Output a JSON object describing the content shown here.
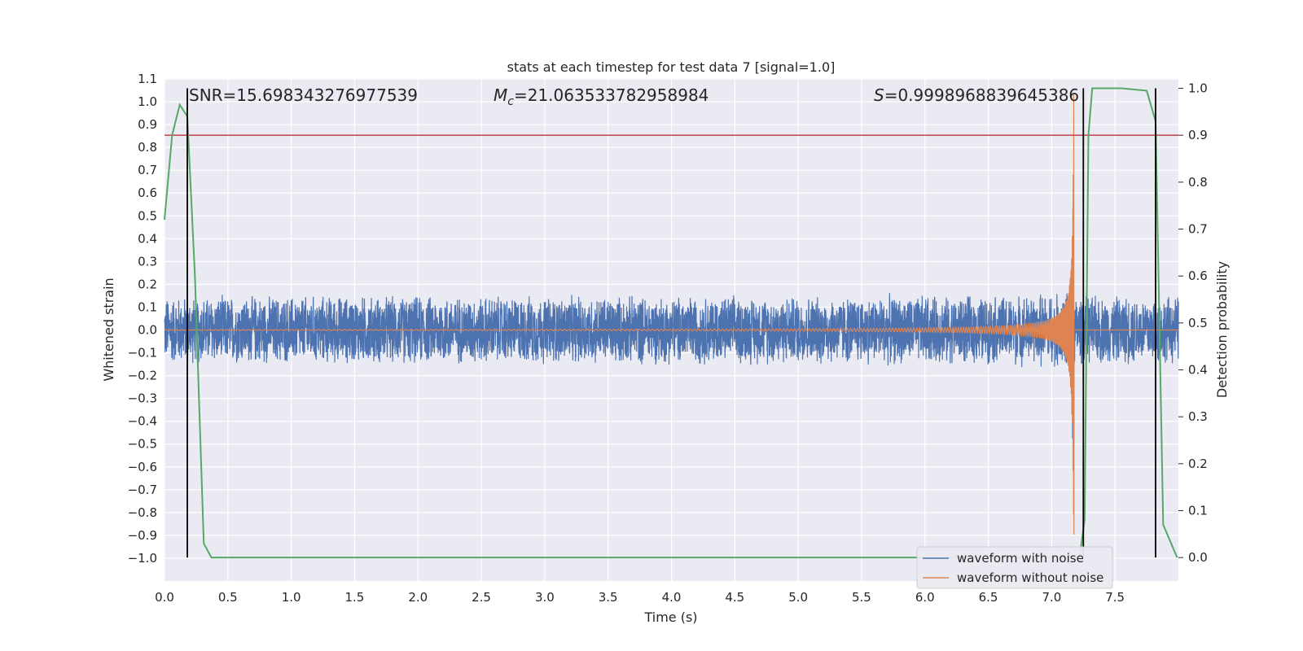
{
  "chart_data": {
    "type": "line",
    "title": "stats at each timestep for test data 7 [signal=1.0]",
    "xlabel": "Time (s)",
    "ylabel": "Whitened strain",
    "y2label": "Detection probability",
    "xlim": [
      0.0,
      8.0
    ],
    "ylim": [
      -1.1,
      1.1
    ],
    "y2lim": [
      -0.05,
      1.02
    ],
    "x_ticks": [
      "0.0",
      "0.5",
      "1.0",
      "1.5",
      "2.0",
      "2.5",
      "3.0",
      "3.5",
      "4.0",
      "4.5",
      "5.0",
      "5.5",
      "6.0",
      "6.5",
      "7.0",
      "7.5"
    ],
    "y_ticks": [
      "1.1",
      "1.0",
      "0.9",
      "0.8",
      "0.7",
      "0.6",
      "0.5",
      "0.4",
      "0.3",
      "0.2",
      "0.1",
      "0.0",
      "−0.1",
      "−0.2",
      "−0.3",
      "−0.4",
      "−0.5",
      "−0.6",
      "−0.7",
      "−0.8",
      "−0.9",
      "−1.0"
    ],
    "y2_ticks": [
      "1.0",
      "0.9",
      "0.8",
      "0.7",
      "0.6",
      "0.5",
      "0.4",
      "0.3",
      "0.2",
      "0.1",
      "0.0"
    ],
    "grid": true,
    "legend_position": "bottom-right",
    "annotations": {
      "snr": "SNR=15.698343276977539",
      "mc_prefix": "M",
      "mc_sub": "c",
      "mc_value": "=21.063533782958984",
      "s_prefix": "S",
      "s_value": "=0.9998968839645386"
    },
    "series": [
      {
        "name": "waveform with noise",
        "color": "#4c72b0",
        "noise_amplitude": 0.16,
        "chirp_peak_time": 7.18
      },
      {
        "name": "waveform without noise",
        "color": "#dd8452",
        "chirp_peak_time": 7.18
      },
      {
        "color": "#55a868",
        "axis": "right",
        "x": [
          0.0,
          0.06,
          0.12,
          0.18,
          0.24,
          0.31,
          0.37,
          7.22,
          7.26,
          7.29,
          7.32,
          7.38,
          7.55,
          7.75,
          7.82,
          7.88,
          7.99
        ],
        "y": [
          0.72,
          0.9,
          0.965,
          0.94,
          0.6,
          0.03,
          0.0,
          0.0,
          0.08,
          0.9,
          1.0,
          1.0,
          1.0,
          0.995,
          0.93,
          0.07,
          0.0
        ]
      }
    ],
    "threshold_line": {
      "value": 0.9,
      "axis": "right",
      "color": "#c44e52"
    },
    "vertical_markers": [
      0.18,
      7.25,
      7.82
    ]
  }
}
